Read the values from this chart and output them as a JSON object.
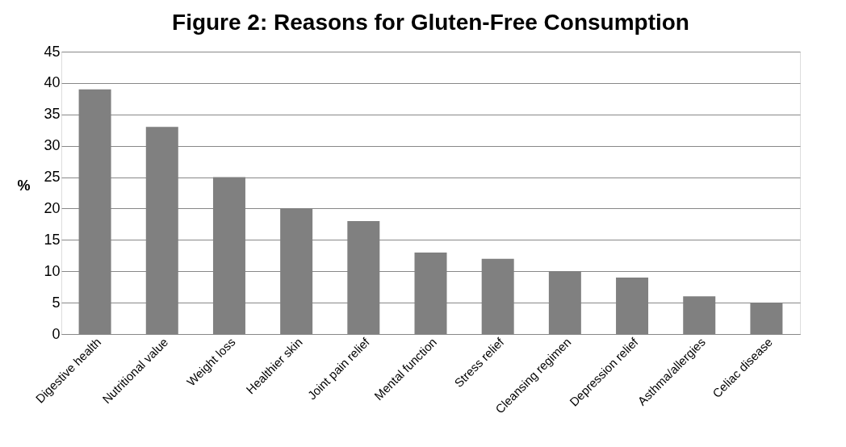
{
  "chart_data": {
    "type": "bar",
    "title": "Figure 2: Reasons for Gluten-Free Consumption",
    "ylabel": "%",
    "categories": [
      "Digestive health",
      "Nutritional value",
      "Weight loss",
      "Healthier skin",
      "Joint pain relief",
      "Mental function",
      "Stress relief",
      "Cleansing regimen",
      "Depression relief",
      "Asthma/allergies",
      "Celiac disease"
    ],
    "values": [
      39,
      33,
      25,
      20,
      18,
      13,
      12,
      10,
      9,
      6,
      5
    ],
    "color": "#808080",
    "ylim": [
      0,
      45
    ],
    "yticks": [
      0,
      5,
      10,
      15,
      20,
      25,
      30,
      35,
      40,
      45
    ],
    "grid": "y"
  }
}
